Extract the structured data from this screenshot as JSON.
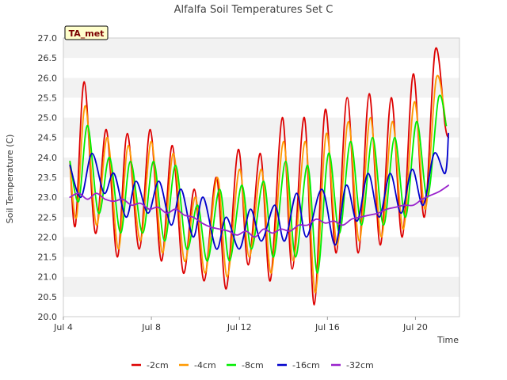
{
  "chart_data": {
    "type": "line",
    "title": "Alfalfa Soil Temperatures Set C",
    "xlabel": "Time",
    "ylabel": "Soil Temperature (C)",
    "badge": "TA_met",
    "ylim": [
      20.0,
      27.0
    ],
    "yticks": [
      "20.0",
      "20.5",
      "21.0",
      "21.5",
      "22.0",
      "22.5",
      "23.0",
      "23.5",
      "24.0",
      "24.5",
      "25.0",
      "25.5",
      "26.0",
      "26.5",
      "27.0"
    ],
    "xlim": [
      4.0,
      22.0
    ],
    "xticks": [
      {
        "value": 4,
        "label": "Jul 4"
      },
      {
        "value": 8,
        "label": "Jul 8"
      },
      {
        "value": 12,
        "label": "Jul 12"
      },
      {
        "value": 16,
        "label": "Jul 16"
      },
      {
        "value": 20,
        "label": "Jul 20"
      }
    ],
    "grid": "horizontal bands",
    "legend_position": "bottom",
    "x_unit": "day of July",
    "series": [
      {
        "name": "-2cm",
        "color": "#dd0000",
        "x": [
          4.3,
          4.55,
          4.95,
          5.45,
          5.95,
          6.45,
          6.9,
          7.45,
          7.95,
          8.45,
          8.95,
          9.45,
          9.95,
          10.4,
          10.95,
          11.4,
          11.95,
          12.4,
          12.95,
          13.4,
          13.95,
          14.4,
          14.95,
          15.4,
          15.9,
          16.4,
          16.9,
          17.4,
          17.9,
          18.4,
          18.9,
          19.4,
          19.9,
          20.4,
          20.9,
          21.35,
          21.5
        ],
        "y": [
          23.9,
          22.3,
          25.9,
          22.1,
          24.7,
          21.5,
          24.6,
          21.7,
          24.7,
          21.4,
          24.3,
          21.1,
          23.2,
          20.9,
          23.5,
          20.7,
          24.2,
          21.3,
          24.1,
          20.9,
          25.0,
          21.2,
          25.0,
          20.3,
          25.2,
          21.6,
          25.5,
          21.6,
          25.6,
          21.8,
          25.5,
          22.0,
          26.1,
          22.5,
          26.7,
          24.8,
          24.5
        ]
      },
      {
        "name": "-4cm",
        "color": "#ff9900",
        "x": [
          4.3,
          4.6,
          5.0,
          5.5,
          6.0,
          6.5,
          6.95,
          7.5,
          8.0,
          8.5,
          9.0,
          9.5,
          10.0,
          10.45,
          11.0,
          11.45,
          12.0,
          12.45,
          13.0,
          13.45,
          14.0,
          14.45,
          15.0,
          15.45,
          15.95,
          16.45,
          16.95,
          17.45,
          17.95,
          18.45,
          18.95,
          19.45,
          19.95,
          20.45,
          20.95,
          21.4
        ],
        "y": [
          23.8,
          22.5,
          25.3,
          22.3,
          24.5,
          21.7,
          24.3,
          21.9,
          24.4,
          21.6,
          24.1,
          21.4,
          23.0,
          21.1,
          23.5,
          21.0,
          23.7,
          21.5,
          23.7,
          21.1,
          24.4,
          21.4,
          24.4,
          20.6,
          24.6,
          21.8,
          24.9,
          21.9,
          25.0,
          22.0,
          24.9,
          22.2,
          25.4,
          22.7,
          26.0,
          24.8
        ]
      },
      {
        "name": "-8cm",
        "color": "#00ee00",
        "x": [
          4.3,
          4.7,
          5.1,
          5.6,
          6.1,
          6.6,
          7.05,
          7.6,
          8.1,
          8.6,
          9.1,
          9.6,
          10.1,
          10.55,
          11.1,
          11.55,
          12.1,
          12.55,
          13.1,
          13.55,
          14.1,
          14.55,
          15.1,
          15.55,
          16.05,
          16.55,
          17.05,
          17.55,
          18.05,
          18.55,
          19.05,
          19.55,
          20.05,
          20.55,
          21.05,
          21.4
        ],
        "y": [
          23.9,
          22.9,
          24.8,
          22.6,
          24.0,
          22.1,
          23.9,
          22.1,
          23.9,
          21.9,
          23.8,
          21.7,
          22.8,
          21.4,
          23.2,
          21.4,
          23.3,
          21.7,
          23.4,
          21.5,
          23.9,
          21.5,
          23.8,
          21.1,
          24.1,
          22.1,
          24.4,
          22.3,
          24.5,
          22.3,
          24.5,
          22.5,
          24.9,
          23.0,
          25.5,
          24.8
        ]
      },
      {
        "name": "-16cm",
        "color": "#0000cc",
        "x": [
          4.3,
          4.8,
          5.3,
          5.85,
          6.3,
          6.85,
          7.3,
          7.85,
          8.35,
          8.9,
          9.35,
          9.9,
          10.35,
          10.95,
          11.4,
          12.0,
          12.5,
          13.0,
          13.6,
          14.05,
          14.6,
          15.05,
          15.75,
          16.35,
          16.85,
          17.35,
          17.85,
          18.35,
          18.85,
          19.35,
          19.85,
          20.35,
          20.85,
          21.35,
          21.5
        ],
        "y": [
          23.8,
          23.0,
          24.1,
          23.1,
          23.6,
          22.5,
          23.4,
          22.6,
          23.4,
          22.3,
          23.2,
          22.0,
          23.0,
          21.7,
          22.5,
          21.7,
          22.7,
          21.9,
          22.8,
          21.9,
          23.1,
          22.0,
          23.2,
          21.8,
          23.3,
          22.4,
          23.6,
          22.5,
          23.6,
          22.6,
          23.7,
          22.8,
          24.1,
          23.6,
          24.6
        ]
      },
      {
        "name": "-32cm",
        "color": "#9922cc",
        "x": [
          4.3,
          4.7,
          5.1,
          5.5,
          5.9,
          6.3,
          6.7,
          7.1,
          7.5,
          7.9,
          8.3,
          8.7,
          9.1,
          9.5,
          9.9,
          10.3,
          10.7,
          11.1,
          11.5,
          11.9,
          12.3,
          12.7,
          13.1,
          13.5,
          13.9,
          14.3,
          14.7,
          15.1,
          15.5,
          15.9,
          16.3,
          16.7,
          17.1,
          17.5,
          17.9,
          18.3,
          18.7,
          19.1,
          19.5,
          19.9,
          20.3,
          20.7,
          21.1,
          21.5
        ],
        "y": [
          23.0,
          23.1,
          22.95,
          23.1,
          22.95,
          22.9,
          22.95,
          22.8,
          22.85,
          22.7,
          22.75,
          22.6,
          22.7,
          22.55,
          22.5,
          22.35,
          22.25,
          22.2,
          22.15,
          22.05,
          22.15,
          22.0,
          22.2,
          22.1,
          22.2,
          22.15,
          22.3,
          22.3,
          22.45,
          22.35,
          22.4,
          22.3,
          22.45,
          22.5,
          22.55,
          22.6,
          22.7,
          22.75,
          22.8,
          22.8,
          22.95,
          23.05,
          23.15,
          23.3
        ]
      }
    ]
  }
}
